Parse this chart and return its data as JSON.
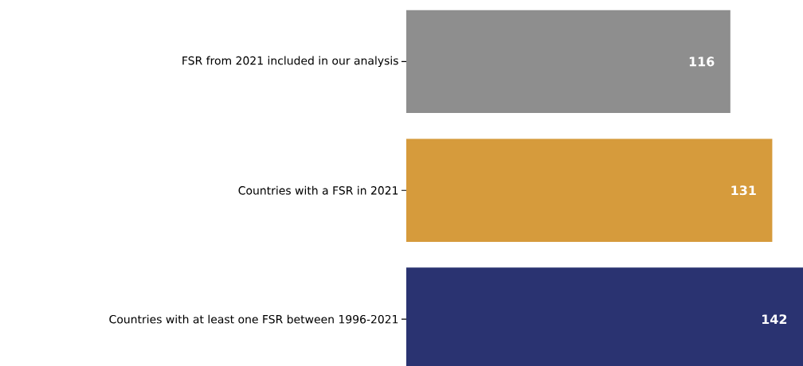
{
  "chart_data": {
    "type": "bar",
    "orientation": "horizontal",
    "categories": [
      "FSR from 2021 included in our analysis",
      "Countries with a FSR in 2021",
      "Countries with at least one FSR between 1996-2021"
    ],
    "values": [
      116,
      131,
      142
    ],
    "colors": [
      "#8e8e8e",
      "#d69b3c",
      "#2a3371"
    ],
    "data_labels": true
  }
}
